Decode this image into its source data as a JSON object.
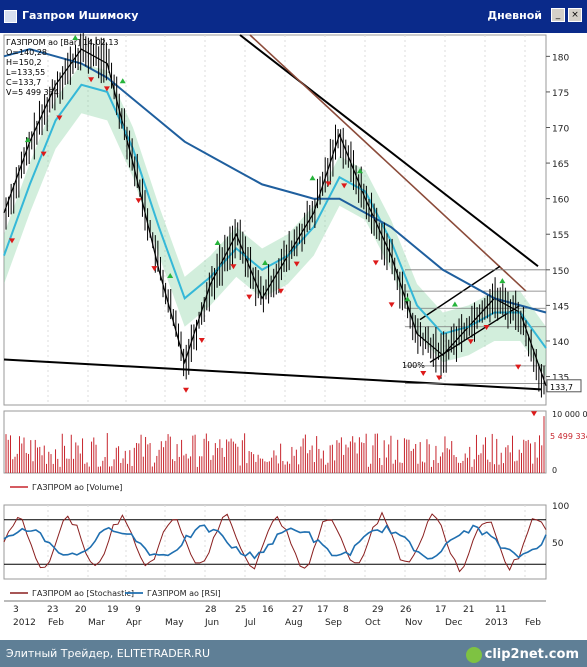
{
  "window": {
    "title": "Газпром Ишимоку",
    "period_label": "Дневной",
    "minimize_glyph": "_",
    "close_glyph": "×",
    "icon": "chart-window-icon"
  },
  "legend_lines": [
    "ГАЗПРОМ ао [Bar] 14.02.13",
    "O=140,28",
    "H=150,2",
    "L=133,55",
    "C=133,7",
    "V=5 499 334"
  ],
  "footer": {
    "credit": "Элитный Трейдер, ELITETRADER.RU",
    "logo": "clip2net.com"
  },
  "colors": {
    "background": "#ffffff",
    "titlebar": "#0a2a8a",
    "candle": "#000000",
    "signal_up": "#27b43c",
    "signal_down": "#dd1a1a",
    "kumo": "#7fcf9a",
    "ma_cyan": "#35b8d8",
    "ma_blue": "#1f5f9e",
    "oscillator_red": "#8a1f1f",
    "rsi_blue": "#1f6fb0",
    "volume": "#c7252d"
  },
  "chart_data": [
    {
      "type": "line",
      "panel": "price",
      "title": "ГАЗПРОМ ао",
      "ylim": [
        131,
        183
      ],
      "y_ticks": [
        135,
        140,
        145,
        150,
        155,
        160,
        165,
        170,
        175,
        180
      ],
      "last_price_label": "133,7",
      "fib_label": "100%",
      "x": [
        "2012-01-03",
        "2012-01-20",
        "2012-02-08",
        "2012-02-27",
        "2012-03-15",
        "2012-04-03",
        "2012-04-20",
        "2012-05-10",
        "2012-05-30",
        "2012-06-20",
        "2012-07-10",
        "2012-07-30",
        "2012-08-20",
        "2012-09-10",
        "2012-09-28",
        "2012-10-18",
        "2012-11-07",
        "2012-11-26",
        "2012-12-14",
        "2013-01-08",
        "2013-01-25",
        "2013-02-14"
      ],
      "series": [
        {
          "name": "close",
          "values": [
            158,
            168,
            176,
            181,
            179,
            165,
            150,
            137,
            148,
            155,
            146,
            152,
            158,
            169,
            160,
            152,
            141,
            138,
            142,
            146,
            144,
            133.7
          ]
        },
        {
          "name": "ma_fast",
          "values": [
            152,
            162,
            171,
            176,
            175,
            167,
            156,
            146,
            149,
            153,
            150,
            152,
            156,
            163,
            161,
            154,
            145,
            141,
            142,
            144,
            144,
            139
          ]
        },
        {
          "name": "ma_slow",
          "values": [
            180,
            181,
            180,
            179,
            177,
            174,
            171,
            168,
            166,
            164,
            162,
            161,
            160,
            160,
            158,
            156,
            153,
            150,
            148,
            146,
            145,
            144
          ]
        }
      ]
    },
    {
      "type": "bar",
      "panel": "volume",
      "title": "ГАЗПРОМ ао [Volume]",
      "ylim": [
        0,
        10000000
      ],
      "y_ticks_labels": [
        "10 000 000",
        "0"
      ],
      "last_value_label": "5 499 334"
    },
    {
      "type": "line",
      "panel": "oscillator",
      "ylim": [
        0,
        100
      ],
      "y_ticks": [
        50,
        100
      ],
      "levels": [
        20,
        80
      ],
      "series": [
        {
          "name": "ГАЗПРОМ ао [Stochastic]"
        },
        {
          "name": "ГАЗПРОМ ао [RSI]"
        }
      ]
    }
  ],
  "date_axis": {
    "day_ticks": [
      "3",
      "23",
      "20",
      "19",
      "9",
      "28",
      "25",
      "16",
      "27",
      "17",
      "8",
      "29",
      "26",
      "17",
      "21",
      "11"
    ],
    "month_ticks": [
      "2012",
      "Feb",
      "Mar",
      "Apr",
      "May",
      "Jun",
      "Jul",
      "Aug",
      "Sep",
      "Oct",
      "Nov",
      "Dec",
      "2013",
      "Feb"
    ]
  }
}
